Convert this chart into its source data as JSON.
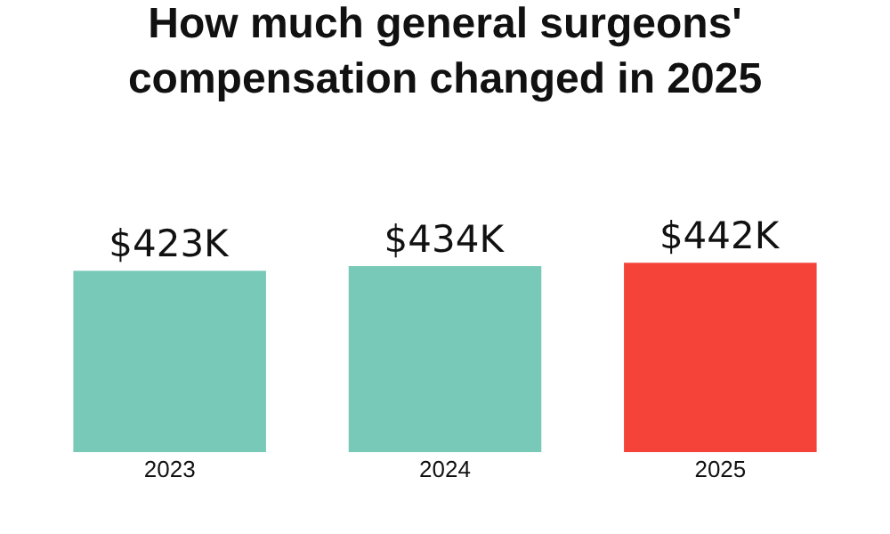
{
  "chart_data": {
    "type": "bar",
    "title": "How much general surgeons'\ncompensation changed in 2025",
    "categories": [
      "2023",
      "2024",
      "2025"
    ],
    "values": [
      423,
      434,
      442
    ],
    "colors": [
      "#79c9b8",
      "#79c9b8",
      "#f5433a"
    ],
    "value_labels": [
      "$423K",
      "$434K",
      "$442K"
    ]
  }
}
